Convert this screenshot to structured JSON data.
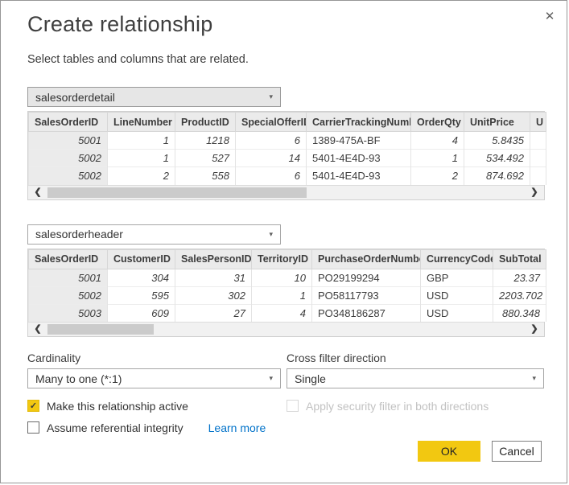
{
  "dialog": {
    "title": "Create relationship",
    "subtitle": "Select tables and columns that are related."
  },
  "icons": {
    "close": "✕",
    "dropdown_arrow": "▾",
    "scroll_left": "❮",
    "scroll_right": "❯",
    "check": "✓"
  },
  "colors": {
    "accent_yellow": "#F2C811",
    "link_blue": "#0072C9",
    "table_header_bg": "#ebebeb"
  },
  "table1": {
    "selector_value": "salesorderdetail",
    "columns": [
      "SalesOrderID",
      "LineNumber",
      "ProductID",
      "SpecialOfferID",
      "CarrierTrackingNumber",
      "OrderQty",
      "UnitPrice",
      "U"
    ],
    "rows": [
      [
        "5001",
        "1",
        "1218",
        "6",
        "1389-475A-BF",
        "4",
        "5.8435",
        ""
      ],
      [
        "5002",
        "1",
        "527",
        "14",
        "5401-4E4D-93",
        "1",
        "534.492",
        ""
      ],
      [
        "5002",
        "2",
        "558",
        "6",
        "5401-4E4D-93",
        "2",
        "874.692",
        ""
      ]
    ]
  },
  "table2": {
    "selector_value": "salesorderheader",
    "columns": [
      "SalesOrderID",
      "CustomerID",
      "SalesPersonID",
      "TerritoryID",
      "PurchaseOrderNumber",
      "CurrencyCode",
      "SubTotal"
    ],
    "rows": [
      [
        "5001",
        "304",
        "31",
        "10",
        "PO29199294",
        "GBP",
        "23.37"
      ],
      [
        "5002",
        "595",
        "302",
        "1",
        "PO58117793",
        "USD",
        "2203.702"
      ],
      [
        "5003",
        "609",
        "27",
        "4",
        "PO348186287",
        "USD",
        "880.348"
      ]
    ]
  },
  "cardinality": {
    "label": "Cardinality",
    "value": "Many to one (*:1)"
  },
  "cross_filter": {
    "label": "Cross filter direction",
    "value": "Single"
  },
  "checkboxes": {
    "active": {
      "label": "Make this relationship active",
      "checked": true,
      "disabled": false
    },
    "referential": {
      "label": "Assume referential integrity",
      "checked": false,
      "disabled": false
    },
    "security": {
      "label": "Apply security filter in both directions",
      "checked": false,
      "disabled": true
    }
  },
  "learn_more_label": "Learn more",
  "buttons": {
    "ok": "OK",
    "cancel": "Cancel"
  }
}
